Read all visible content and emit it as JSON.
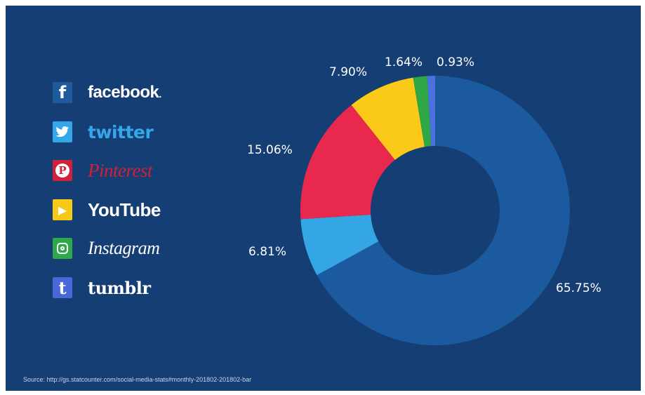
{
  "legend": [
    {
      "icon": "facebook-icon",
      "glyph": "f",
      "label": "facebook",
      "name": "facebook",
      "label_suffix": ".",
      "color": "#1f5a9c"
    },
    {
      "icon": "twitter-icon",
      "glyph": "🐦",
      "label": "twitter",
      "name": "twitter",
      "color": "#35a7e8"
    },
    {
      "icon": "pinterest-icon",
      "glyph": "P",
      "label": "Pinterest",
      "name": "pinterest",
      "color": "#d11f3c"
    },
    {
      "icon": "youtube-icon",
      "glyph": "▶",
      "label": "YouTube",
      "name": "youtube",
      "color": "#f7c917"
    },
    {
      "icon": "instagram-icon",
      "glyph": "◎",
      "label": "Instagram",
      "name": "instagram",
      "color": "#2da84a"
    },
    {
      "icon": "tumblr-icon",
      "glyph": "t",
      "label": "tumblr",
      "name": "tumblr",
      "color": "#4a66d8"
    }
  ],
  "chart_data": {
    "type": "pie",
    "style": "donut",
    "categories": [
      "facebook",
      "twitter",
      "Pinterest",
      "YouTube",
      "Instagram",
      "tumblr"
    ],
    "values": [
      65.75,
      6.81,
      15.06,
      7.9,
      1.64,
      0.93
    ],
    "labels": [
      "65.75%",
      "6.81%",
      "15.06%",
      "7.90%",
      "1.64%",
      "0.93%"
    ],
    "colors": [
      "#1c5aa0",
      "#33a6e3",
      "#e9284e",
      "#fbca18",
      "#2fa747",
      "#4c70dd"
    ],
    "title": "",
    "legend": "left"
  },
  "source": "Source: http://gs.statcounter.com/social-media-stats#monthly-201802-201802-bar"
}
